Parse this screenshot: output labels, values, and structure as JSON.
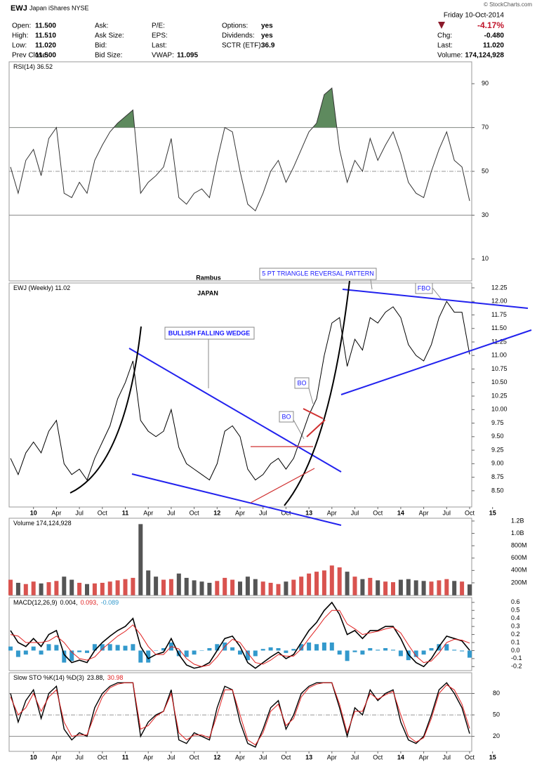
{
  "header": {
    "symbol": "EWJ",
    "name": "Japan iShares NYSE",
    "copyright": "© StockCharts.com",
    "date": "Friday 10-Oct-2014",
    "change_pct": "-4.17%",
    "quote": [
      [
        {
          "label": "Open:",
          "value": "11.500"
        },
        {
          "label": "High:",
          "value": "11.510"
        },
        {
          "label": "Low:",
          "value": "11.020"
        },
        {
          "label": "Prev Close:",
          "value": "11.500"
        }
      ],
      [
        {
          "label": "Ask:"
        },
        {
          "label": "Ask Size:"
        },
        {
          "label": "Bid:"
        },
        {
          "label": "Bid Size:"
        }
      ],
      [
        {
          "label": "P/E:"
        },
        {
          "label": "EPS:"
        },
        {
          "label": "Last:"
        },
        {
          "label": "VWAP:",
          "value": "11.095"
        }
      ],
      [
        {
          "label": "Options:",
          "value": "yes"
        },
        {
          "label": "Dividends:",
          "value": "yes"
        },
        {
          "label": "SCTR (ETF):",
          "value": "36.9"
        }
      ]
    ],
    "summary": [
      {
        "label": "Chg:",
        "value": "-0.480"
      },
      {
        "label": "Last:",
        "value": "11.020"
      },
      {
        "label": "Volume:",
        "value": "174,124,928"
      }
    ]
  },
  "annotations": {
    "rambus": "Rambus",
    "japan": "JAPAN",
    "wedge": "BULLISH FALLING WEDGE",
    "triangle": "5 PT TRIANGLE REVERSAL PATTERN",
    "bo1": "BO",
    "bo2": "BO",
    "fbo": "FBO"
  },
  "chart_data": {
    "type": "stock",
    "x": [
      "2009-10",
      "2009-11",
      "2009-12",
      "2010-01",
      "2010-02",
      "2010-03",
      "2010-04",
      "2010-05",
      "2010-06",
      "2010-07",
      "2010-08",
      "2010-09",
      "2010-10",
      "2010-11",
      "2010-12",
      "2011-01",
      "2011-02",
      "2011-03",
      "2011-04",
      "2011-05",
      "2011-06",
      "2011-07",
      "2011-08",
      "2011-09",
      "2011-10",
      "2011-11",
      "2011-12",
      "2012-01",
      "2012-02",
      "2012-03",
      "2012-04",
      "2012-05",
      "2012-06",
      "2012-07",
      "2012-08",
      "2012-09",
      "2012-10",
      "2012-11",
      "2012-12",
      "2013-01",
      "2013-02",
      "2013-03",
      "2013-04",
      "2013-05",
      "2013-06",
      "2013-07",
      "2013-08",
      "2013-09",
      "2013-10",
      "2013-11",
      "2013-12",
      "2014-01",
      "2014-02",
      "2014-03",
      "2014-04",
      "2014-05",
      "2014-06",
      "2014-07",
      "2014-08",
      "2014-09",
      "2014-10"
    ],
    "xlim": [
      "2009-10",
      "2014-10"
    ],
    "xticks": [
      {
        "value": "2010-01",
        "label": "10"
      },
      {
        "value": "2010-04",
        "label": "Apr"
      },
      {
        "value": "2010-07",
        "label": "Jul"
      },
      {
        "value": "2010-10",
        "label": "Oct"
      },
      {
        "value": "2011-01",
        "label": "11"
      },
      {
        "value": "2011-04",
        "label": "Apr"
      },
      {
        "value": "2011-07",
        "label": "Jul"
      },
      {
        "value": "2011-10",
        "label": "Oct"
      },
      {
        "value": "2012-01",
        "label": "12"
      },
      {
        "value": "2012-04",
        "label": "Apr"
      },
      {
        "value": "2012-07",
        "label": "Jul"
      },
      {
        "value": "2012-10",
        "label": "Oct"
      },
      {
        "value": "2013-01",
        "label": "13"
      },
      {
        "value": "2013-04",
        "label": "Apr"
      },
      {
        "value": "2013-07",
        "label": "Jul"
      },
      {
        "value": "2013-10",
        "label": "Oct"
      },
      {
        "value": "2014-01",
        "label": "14"
      },
      {
        "value": "2014-04",
        "label": "Apr"
      },
      {
        "value": "2014-07",
        "label": "Jul"
      },
      {
        "value": "2014-10",
        "label": "Oct"
      },
      {
        "value": "2015-01",
        "label": "15"
      }
    ],
    "panels": [
      {
        "type": "line",
        "legend": [
          {
            "text": "RSI(14) 36.52",
            "color": "#000"
          }
        ],
        "ylim": [
          0,
          100
        ],
        "yticks": [
          10,
          30,
          50,
          70,
          90
        ],
        "ref_lines": [
          30,
          70
        ],
        "dash_lines": [
          50
        ],
        "fill_above": 70,
        "fill_color": "#5e8a5e",
        "series": [
          {
            "name": "RSI",
            "color": "#333",
            "values": [
              52,
              40,
              55,
              60,
              48,
              65,
              70,
              40,
              38,
              45,
              40,
              55,
              62,
              68,
              72,
              75,
              78,
              40,
              45,
              48,
              52,
              65,
              38,
              35,
              40,
              42,
              38,
              55,
              70,
              68,
              50,
              35,
              32,
              40,
              50,
              55,
              45,
              52,
              60,
              68,
              72,
              85,
              88,
              60,
              45,
              55,
              50,
              65,
              55,
              62,
              68,
              58,
              45,
              40,
              38,
              50,
              60,
              68,
              55,
              52,
              36.52
            ]
          }
        ]
      },
      {
        "type": "line",
        "legend": [
          {
            "text": "EWJ (Weekly) 11.02",
            "color": "#000"
          }
        ],
        "ylim": [
          8.2,
          12.34
        ],
        "yticks": [
          {
            "value": 8.5,
            "label": "8.50"
          },
          8.75,
          {
            "value": 9,
            "label": "9.00"
          },
          9.25,
          {
            "value": 9.5,
            "label": "9.50"
          },
          9.75,
          {
            "value": 10,
            "label": "10.00"
          },
          10.25,
          {
            "value": 10.5,
            "label": "10.50"
          },
          10.75,
          {
            "value": 11,
            "label": "11.00"
          },
          11.25,
          {
            "value": 11.5,
            "label": "11.50"
          },
          11.75,
          {
            "value": 12,
            "label": "12.00"
          },
          12.25
        ],
        "show_dates": true,
        "series": [
          {
            "name": "EWJ",
            "color": "#000",
            "values": [
              9.1,
              8.8,
              9.2,
              9.4,
              9.2,
              9.6,
              9.8,
              9.0,
              8.8,
              8.9,
              8.7,
              9.1,
              9.4,
              9.7,
              10.2,
              10.5,
              10.9,
              9.8,
              9.6,
              9.5,
              9.6,
              10.0,
              9.3,
              9.0,
              8.9,
              8.8,
              8.7,
              9.0,
              9.6,
              9.7,
              9.5,
              8.9,
              8.7,
              8.8,
              9.0,
              9.1,
              8.9,
              9.1,
              9.5,
              9.9,
              10.2,
              11.0,
              11.6,
              11.7,
              10.8,
              11.3,
              11.1,
              11.7,
              11.6,
              11.8,
              11.9,
              11.7,
              11.2,
              11.0,
              10.9,
              11.2,
              11.7,
              12.0,
              11.8,
              11.8,
              11.02
            ]
          }
        ]
      },
      {
        "type": "bar",
        "legend": [
          {
            "text": "Volume 174,124,928",
            "color": "#000"
          }
        ],
        "ylim": [
          -5,
          1245
        ],
        "yticks": [
          {
            "value": 200,
            "label": "200M"
          },
          {
            "value": 400,
            "label": "400M"
          },
          {
            "value": 600,
            "label": "600M"
          },
          {
            "value": 800,
            "label": "800M"
          },
          {
            "value": 1000,
            "label": "1.0B"
          },
          {
            "value": 1200,
            "label": "1.2B"
          }
        ],
        "up_color": "#d9534f",
        "down_color": "#555",
        "series": [
          {
            "name": "Volume",
            "values": [
              250,
              200,
              180,
              220,
              190,
              210,
              230,
              300,
              250,
              200,
              180,
              190,
              200,
              220,
              240,
              260,
              280,
              1150,
              400,
              300,
              250,
              260,
              350,
              280,
              240,
              220,
              200,
              230,
              280,
              250,
              220,
              300,
              260,
              220,
              200,
              180,
              220,
              250,
              300,
              350,
              380,
              400,
              480,
              450,
              380,
              300,
              260,
              280,
              240,
              220,
              210,
              250,
              260,
              240,
              230,
              220,
              240,
              260,
              230,
              220,
              174.1
            ]
          }
        ]
      },
      {
        "type": "line",
        "legend": [
          {
            "text": "MACD(12,26,9)",
            "color": "#000"
          },
          {
            "text": "0.004,",
            "color": "#000"
          },
          {
            "text": "0.093,",
            "color": "#e02020"
          },
          {
            "text": "-0.089",
            "color": "#3399cc"
          }
        ],
        "ylim": [
          -0.25,
          0.66
        ],
        "yticks": [
          -0.2,
          -0.1,
          {
            "value": 0,
            "label": "0.0"
          },
          0.1,
          0.2,
          0.3,
          0.4,
          0.5,
          0.6
        ],
        "series": [
          {
            "name": "Histogram",
            "type": "bar",
            "color": "#3399cc",
            "values": [
              0.05,
              -0.08,
              -0.05,
              0.05,
              -0.05,
              0.08,
              0.07,
              -0.15,
              -0.13,
              -0.02,
              -0.03,
              0.08,
              0.08,
              0.08,
              0.07,
              0.06,
              0.08,
              -0.15,
              -0.15,
              0,
              0.03,
              0.1,
              -0.07,
              -0.08,
              -0.05,
              0,
              0.03,
              0.08,
              0.1,
              0.04,
              -0.05,
              -0.12,
              -0.07,
              0.02,
              0.04,
              0.03,
              -0.03,
              0.02,
              0.08,
              0.1,
              0.08,
              0.1,
              0.1,
              -0.05,
              -0.13,
              -0.02,
              -0.05,
              0.03,
              0.01,
              0.03,
              0.01,
              -0.07,
              -0.12,
              -0.08,
              -0.05,
              0.03,
              0.08,
              0.08,
              0.01,
              -0.01,
              -0.089
            ]
          },
          {
            "name": "MACD",
            "color": "#000",
            "width": 1.6,
            "values": [
              0.25,
              0.1,
              0.05,
              0.15,
              0.05,
              0.2,
              0.25,
              -0.05,
              -0.15,
              -0.12,
              -0.15,
              0,
              0.1,
              0.18,
              0.25,
              0.3,
              0.4,
              0.05,
              -0.1,
              -0.05,
              -0.02,
              0.15,
              -0.05,
              -0.18,
              -0.22,
              -0.2,
              -0.15,
              0,
              0.15,
              0.18,
              0.05,
              -0.15,
              -0.22,
              -0.15,
              -0.08,
              -0.02,
              -0.1,
              -0.05,
              0.1,
              0.25,
              0.35,
              0.5,
              0.6,
              0.45,
              0.2,
              0.25,
              0.15,
              0.25,
              0.25,
              0.3,
              0.3,
              0.15,
              -0.05,
              -0.15,
              -0.2,
              -0.1,
              0.05,
              0.18,
              0.15,
              0.12,
              0.004
            ]
          },
          {
            "name": "Signal",
            "color": "#e02020",
            "values": [
              0.2,
              0.18,
              0.1,
              0.1,
              0.1,
              0.12,
              0.18,
              0.1,
              -0.02,
              -0.1,
              -0.12,
              -0.08,
              0.02,
              0.1,
              0.18,
              0.24,
              0.32,
              0.2,
              0.05,
              -0.05,
              -0.05,
              0.05,
              0.02,
              -0.1,
              -0.17,
              -0.2,
              -0.18,
              -0.08,
              0.05,
              0.14,
              0.1,
              -0.03,
              -0.15,
              -0.17,
              -0.12,
              -0.05,
              -0.07,
              -0.07,
              0.02,
              0.15,
              0.27,
              0.4,
              0.5,
              0.5,
              0.33,
              0.27,
              0.2,
              0.22,
              0.24,
              0.27,
              0.29,
              0.22,
              0.07,
              -0.07,
              -0.15,
              -0.13,
              -0.03,
              0.1,
              0.14,
              0.13,
              0.093
            ]
          }
        ]
      },
      {
        "type": "line",
        "legend": [
          {
            "text": "Slow STO %K(14) %D(3)",
            "color": "#000"
          },
          {
            "text": "23.88,",
            "color": "#000"
          },
          {
            "text": "30.98",
            "color": "#e02020"
          }
        ],
        "ylim": [
          -1,
          109
        ],
        "yticks": [
          20,
          50,
          80
        ],
        "ref_lines": [
          20,
          80
        ],
        "dash_lines": [
          50
        ],
        "show_dates": true,
        "series": [
          {
            "name": "%K",
            "color": "#000",
            "width": 1.4,
            "values": [
              80,
              40,
              70,
              85,
              45,
              80,
              90,
              30,
              15,
              25,
              20,
              60,
              80,
              90,
              95,
              95,
              95,
              20,
              40,
              50,
              55,
              85,
              15,
              10,
              25,
              20,
              15,
              60,
              90,
              85,
              40,
              10,
              5,
              30,
              60,
              70,
              30,
              50,
              80,
              90,
              95,
              95,
              95,
              60,
              20,
              60,
              50,
              85,
              70,
              80,
              85,
              40,
              15,
              10,
              20,
              50,
              85,
              95,
              80,
              60,
              23.88
            ]
          },
          {
            "name": "%D",
            "color": "#e02020",
            "values": [
              75,
              50,
              60,
              80,
              55,
              75,
              85,
              40,
              20,
              22,
              22,
              50,
              75,
              88,
              93,
              95,
              95,
              30,
              35,
              48,
              55,
              80,
              25,
              15,
              22,
              22,
              18,
              50,
              85,
              85,
              50,
              15,
              8,
              25,
              55,
              65,
              35,
              45,
              75,
              88,
              93,
              95,
              95,
              65,
              25,
              55,
              55,
              80,
              72,
              78,
              83,
              50,
              20,
              12,
              18,
              45,
              80,
              92,
              85,
              65,
              30.98
            ]
          }
        ]
      }
    ]
  }
}
